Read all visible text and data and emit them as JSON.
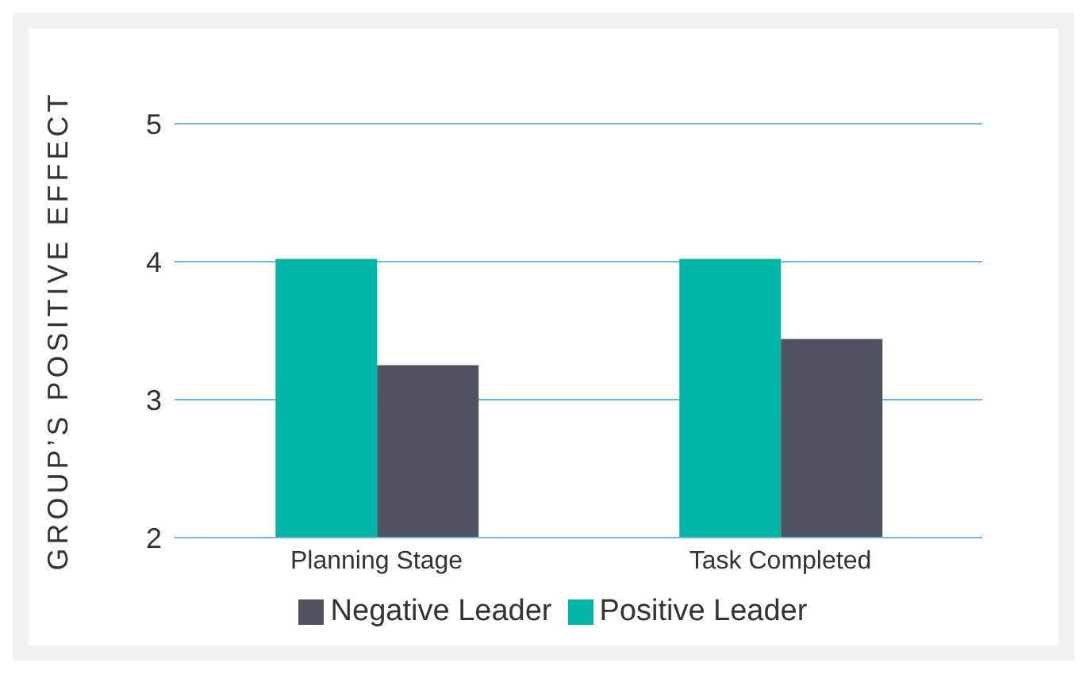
{
  "chart_data": {
    "type": "bar",
    "ylabel": "GROUP’S POSITIVE EFFECT",
    "categories": [
      "Planning Stage",
      "Task Completed"
    ],
    "series": [
      {
        "name": "Positive Leader",
        "color": "#00b5a6",
        "values": [
          4.02,
          4.02
        ]
      },
      {
        "name": "Negative Leader",
        "color": "#4f535f",
        "values": [
          3.25,
          3.44
        ]
      }
    ],
    "ylim": [
      2,
      5
    ],
    "yticks": [
      2,
      3,
      4,
      5
    ],
    "grid": "y",
    "legend": "bottom"
  }
}
